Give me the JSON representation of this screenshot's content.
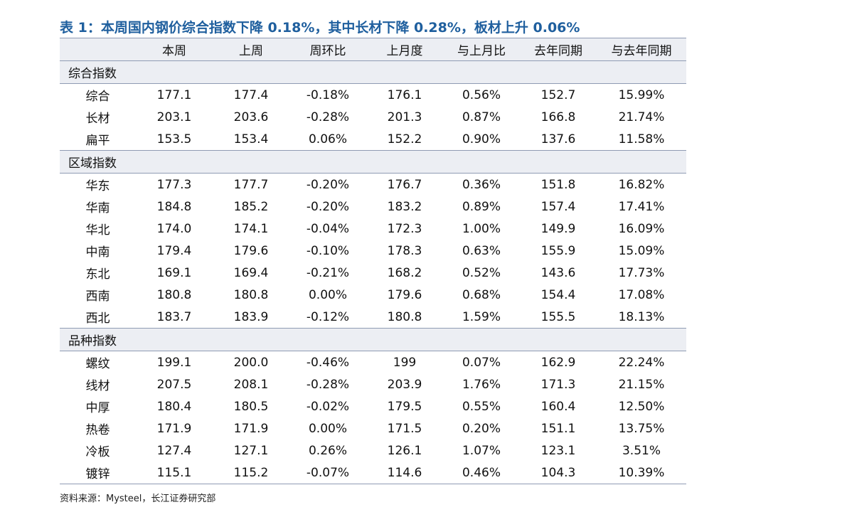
{
  "title": "表 1：本周国内钢价综合指数下降 0.18%，其中长材下降 0.28%，板材上升 0.06%",
  "table": {
    "header": [
      "本周",
      "上周",
      "周环比",
      "上月度",
      "与上月比",
      "去年同期",
      "与去年同期"
    ],
    "sections": [
      {
        "name": "综合指数",
        "rows": [
          [
            "综合",
            "177.1",
            "177.4",
            "-0.18%",
            "176.1",
            "0.56%",
            "152.7",
            "15.99%"
          ],
          [
            "长材",
            "203.1",
            "203.6",
            "-0.28%",
            "201.3",
            "0.87%",
            "166.8",
            "21.74%"
          ],
          [
            "扁平",
            "153.5",
            "153.4",
            "0.06%",
            "152.2",
            "0.90%",
            "137.6",
            "11.58%"
          ]
        ]
      },
      {
        "name": "区域指数",
        "rows": [
          [
            "华东",
            "177.3",
            "177.7",
            "-0.20%",
            "176.7",
            "0.36%",
            "151.8",
            "16.82%"
          ],
          [
            "华南",
            "184.8",
            "185.2",
            "-0.20%",
            "183.2",
            "0.89%",
            "157.4",
            "17.41%"
          ],
          [
            "华北",
            "174.0",
            "174.1",
            "-0.04%",
            "172.3",
            "1.00%",
            "149.9",
            "16.09%"
          ],
          [
            "中南",
            "179.4",
            "179.6",
            "-0.10%",
            "178.3",
            "0.63%",
            "155.9",
            "15.09%"
          ],
          [
            "东北",
            "169.1",
            "169.4",
            "-0.21%",
            "168.2",
            "0.52%",
            "143.6",
            "17.73%"
          ],
          [
            "西南",
            "180.8",
            "180.8",
            "0.00%",
            "179.6",
            "0.68%",
            "154.4",
            "17.08%"
          ],
          [
            "西北",
            "183.7",
            "183.9",
            "-0.12%",
            "180.8",
            "1.59%",
            "155.5",
            "18.13%"
          ]
        ]
      },
      {
        "name": "品种指数",
        "rows": [
          [
            "螺纹",
            "199.1",
            "200.0",
            "-0.46%",
            "199",
            "0.07%",
            "162.9",
            "22.24%"
          ],
          [
            "线材",
            "207.5",
            "208.1",
            "-0.28%",
            "203.9",
            "1.76%",
            "171.3",
            "21.15%"
          ],
          [
            "中厚",
            "180.4",
            "180.5",
            "-0.02%",
            "179.5",
            "0.55%",
            "160.4",
            "12.50%"
          ],
          [
            "热卷",
            "171.9",
            "171.9",
            "0.00%",
            "171.5",
            "0.20%",
            "151.1",
            "13.75%"
          ],
          [
            "冷板",
            "127.4",
            "127.1",
            "0.26%",
            "126.1",
            "1.07%",
            "123.1",
            "3.51%"
          ],
          [
            "镀锌",
            "115.1",
            "115.2",
            "-0.07%",
            "114.6",
            "0.46%",
            "104.3",
            "10.39%"
          ]
        ]
      }
    ]
  },
  "source": "资料来源：Mysteel，长江证券研究部"
}
